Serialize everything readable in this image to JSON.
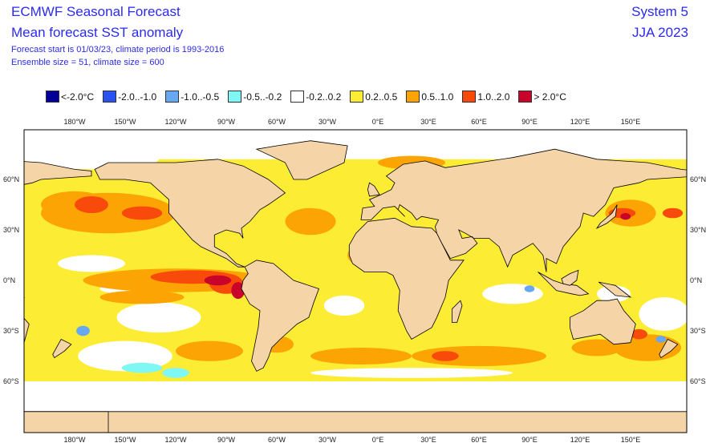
{
  "header": {
    "title": "ECMWF Seasonal Forecast",
    "subtitle": "Mean forecast SST anomaly",
    "info1": "Forecast start is 01/03/23, climate period is 1993-2016",
    "info2": "Ensemble size = 51, climate size = 600",
    "system": "System 5",
    "season": "JJA 2023"
  },
  "legend": [
    {
      "label": "<-2.0°C",
      "color": "#000099"
    },
    {
      "label": "-2.0..-1.0",
      "color": "#2a52f0"
    },
    {
      "label": "-1.0..-0.5",
      "color": "#66a8f2"
    },
    {
      "label": "-0.5..-0.2",
      "color": "#7ff8f5"
    },
    {
      "label": "-0.2..0.2",
      "color": "#ffffff"
    },
    {
      "label": "0.2..0.5",
      "color": "#fdec34"
    },
    {
      "label": "0.5..1.0",
      "color": "#fca403"
    },
    {
      "label": "1.0..2.0",
      "color": "#f84a0a"
    },
    {
      "label": "> 2.0°C",
      "color": "#c8042a"
    }
  ],
  "land_color": "#f5d5a8",
  "lon_labels": [
    "180°W",
    "150°W",
    "120°W",
    "90°W",
    "60°W",
    "30°W",
    "0°E",
    "30°E",
    "60°E",
    "90°E",
    "120°E",
    "150°E"
  ],
  "lat_labels": [
    "60°N",
    "30°N",
    "0°N",
    "30°S",
    "60°S"
  ]
}
